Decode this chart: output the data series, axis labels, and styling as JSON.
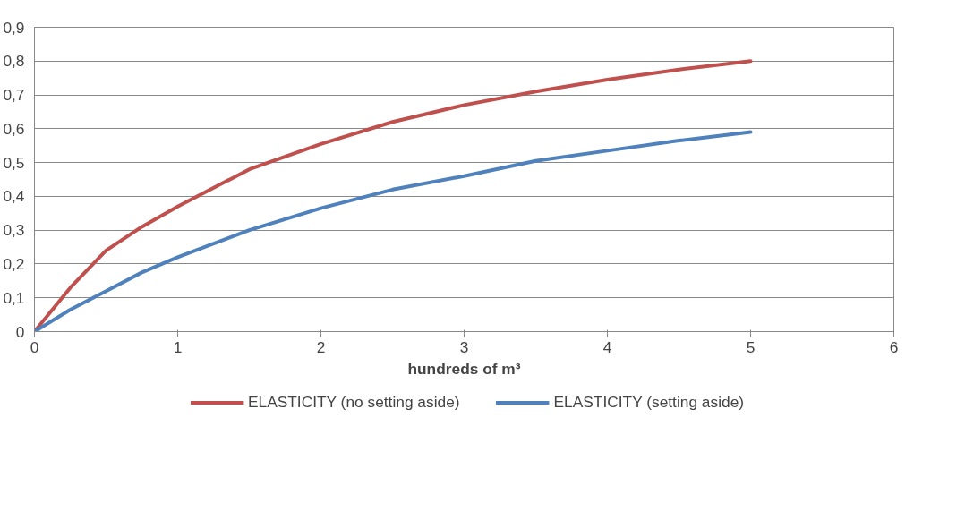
{
  "chart_data": {
    "type": "line",
    "xlabel": "hundreds of m³",
    "xlim": [
      0,
      6
    ],
    "xticks": [
      0,
      1,
      2,
      3,
      4,
      5,
      6
    ],
    "ylim": [
      0,
      0.9
    ],
    "yticks": [
      0,
      {
        "value": 0.1,
        "label": "0,1"
      },
      {
        "value": 0.2,
        "label": "0,2"
      },
      {
        "value": 0.3,
        "label": "0,3"
      },
      {
        "value": 0.4,
        "label": "0,4"
      },
      {
        "value": 0.5,
        "label": "0,5"
      },
      {
        "value": 0.6,
        "label": "0,6"
      },
      {
        "value": 0.7,
        "label": "0,7"
      },
      {
        "value": 0.8,
        "label": "0,8"
      },
      {
        "value": 0.9,
        "label": "0,9"
      }
    ],
    "grid": "y",
    "legend": "bottom",
    "marker": "none",
    "line_style": "solid",
    "x": [
      0,
      0.25,
      0.5,
      0.75,
      1,
      1.5,
      2,
      2.5,
      3,
      3.5,
      4,
      4.5,
      5
    ],
    "series": [
      {
        "name": "ELASTICITY (no setting aside)",
        "color": "#c0504d",
        "values": [
          0,
          0.13,
          0.24,
          0.31,
          0.37,
          0.48,
          0.555,
          0.62,
          0.67,
          0.71,
          0.745,
          0.775,
          0.8
        ]
      },
      {
        "name": "ELASTICITY (setting aside)",
        "color": "#4f81bd",
        "values": [
          0,
          0.065,
          0.12,
          0.175,
          0.22,
          0.3,
          0.365,
          0.42,
          0.46,
          0.505,
          0.535,
          0.565,
          0.59
        ]
      }
    ]
  }
}
